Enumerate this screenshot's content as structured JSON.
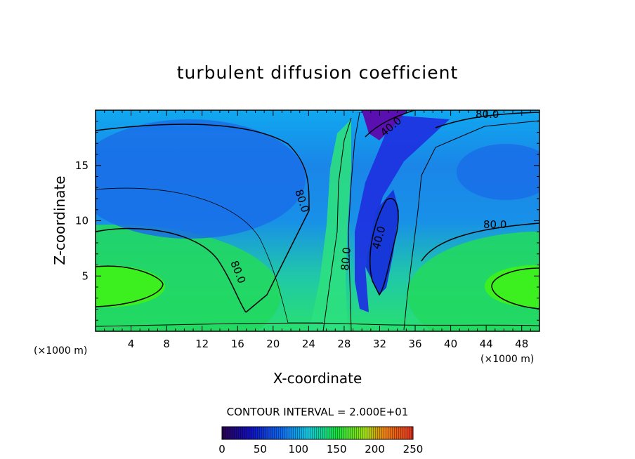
{
  "chart_data": {
    "type": "heatmap",
    "title": "turbulent diffusion coefficient",
    "xlabel": "X-coordinate",
    "ylabel": "Z-coordinate",
    "x_unit": "(×1000 m)",
    "y_unit": "(×1000 m)",
    "xlim": [
      0,
      50
    ],
    "ylim": [
      0,
      20
    ],
    "x_ticks": [
      4,
      8,
      12,
      16,
      20,
      24,
      28,
      32,
      36,
      40,
      44,
      48
    ],
    "y_ticks": [
      5,
      10,
      15
    ],
    "contour_interval_text": "CONTOUR INTERVAL = 2.000E+01",
    "contour_levels": [
      40,
      80
    ],
    "contour_labels": [
      "80.0",
      "40.0",
      "80.0",
      "80.0",
      "80.0",
      "40.0",
      "80.0"
    ],
    "colorbar": {
      "min": 0,
      "max": 250,
      "ticks": [
        0,
        50,
        100,
        150,
        200,
        250
      ]
    }
  }
}
